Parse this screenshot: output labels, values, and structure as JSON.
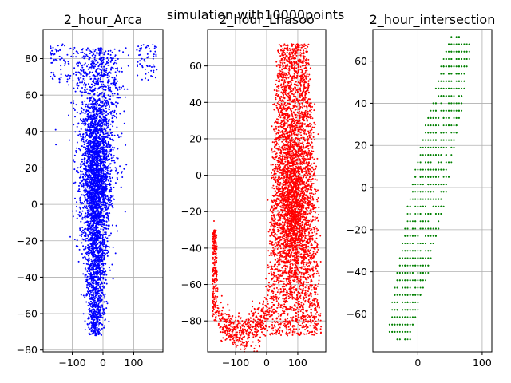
{
  "figure": {
    "suptitle": "simulation with10000points"
  },
  "chart_data": [
    {
      "type": "scatter",
      "title": "2_hour_Arca",
      "xlabel": "",
      "ylabel": "",
      "xlim": [
        -195,
        195
      ],
      "ylim": [
        -81,
        96
      ],
      "xticks": [
        -100,
        0,
        100
      ],
      "yticks": [
        -80,
        -60,
        -40,
        -20,
        0,
        20,
        40,
        60,
        80
      ],
      "grid": true,
      "point_color": "#0000ff",
      "point_count": 10000,
      "series": [
        {
          "points_sample": [
            [
              -20,
              20
            ],
            [
              -30,
              -10
            ],
            [
              0,
              40
            ],
            [
              -60,
              60
            ],
            [
              40,
              10
            ],
            [
              -10,
              -60
            ],
            [
              150,
              80
            ],
            [
              -150,
              80
            ]
          ]
        }
      ]
    },
    {
      "type": "scatter",
      "title": "2_hour_Lhasoo",
      "xlabel": "",
      "ylabel": "",
      "xlim": [
        -190,
        190
      ],
      "ylim": [
        -97,
        80
      ],
      "xticks": [
        -100,
        0,
        100
      ],
      "yticks": [
        -80,
        -60,
        -40,
        -20,
        0,
        20,
        40,
        60
      ],
      "grid": true,
      "point_color": "#ff0000",
      "point_count": 10000,
      "series": [
        {
          "points_sample": [
            [
              80,
              -20
            ],
            [
              60,
              40
            ],
            [
              100,
              0
            ],
            [
              90,
              60
            ],
            [
              -150,
              -70
            ],
            [
              -100,
              -80
            ],
            [
              40,
              -60
            ],
            [
              150,
              10
            ]
          ]
        }
      ]
    },
    {
      "type": "scatter",
      "title": "2_hour_intersection",
      "xlabel": "",
      "ylabel": "",
      "xlim": [
        -70,
        115
      ],
      "ylim": [
        -78,
        75
      ],
      "xticks": [
        0,
        100
      ],
      "yticks": [
        -60,
        -40,
        -20,
        0,
        20,
        40,
        60
      ],
      "grid": true,
      "point_color": "#008000",
      "point_count": 1200,
      "series": [
        {
          "points_sample": [
            [
              -50,
              -60
            ],
            [
              -20,
              -40
            ],
            [
              0,
              -10
            ],
            [
              20,
              10
            ],
            [
              40,
              30
            ],
            [
              60,
              50
            ],
            [
              80,
              68
            ],
            [
              30,
              -20
            ]
          ]
        }
      ]
    }
  ]
}
